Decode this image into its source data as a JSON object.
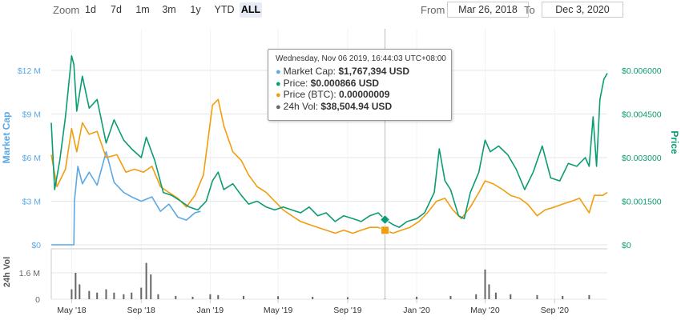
{
  "range_selector": {
    "zoom_label": "Zoom",
    "buttons": [
      {
        "label": "1d",
        "active": false
      },
      {
        "label": "7d",
        "active": false
      },
      {
        "label": "1m",
        "active": false
      },
      {
        "label": "3m",
        "active": false
      },
      {
        "label": "1y",
        "active": false
      },
      {
        "label": "YTD",
        "active": false
      },
      {
        "label": "ALL",
        "active": true
      }
    ],
    "from_label": "From",
    "from_value": "Mar 26, 2018",
    "to_label": "To",
    "to_value": "Dec 3, 2020"
  },
  "tooltip": {
    "header": "Wednesday, Nov 06 2019, 16:44:03 UTC+08:00",
    "rows": [
      {
        "label": "Market Cap:",
        "value": "$1,767,394 USD",
        "color": "#5aa9e6"
      },
      {
        "label": "Price:",
        "value": "$0.000866 USD",
        "color": "#0a9c73"
      },
      {
        "label": "Price (BTC):",
        "value": "0.00000009",
        "color": "#f29d0c"
      },
      {
        "label": "24h Vol:",
        "value": "$38,504.94 USD",
        "color": "#666666"
      }
    ]
  },
  "colors": {
    "market_cap": "#5aa9e6",
    "price": "#0a9c73",
    "price_btc": "#f29d0c",
    "volume": "#666666"
  },
  "chart_data": {
    "type": "line",
    "x_range": [
      "2018-03-26",
      "2020-12-03"
    ],
    "x_tick_labels": [
      "May '18",
      "Sep '18",
      "Jan '19",
      "May '19",
      "Sep '19",
      "Jan '20",
      "May '20",
      "Sep '20"
    ],
    "x_tick_dates": [
      "2018-05-01",
      "2018-09-01",
      "2019-01-01",
      "2019-05-01",
      "2019-09-01",
      "2020-01-01",
      "2020-05-01",
      "2020-09-01"
    ],
    "left_axis": {
      "label": "Market Cap",
      "ticks": [
        "$0",
        "$3 M",
        "$6 M",
        "$9 M",
        "$12 M"
      ],
      "values": [
        0,
        3000000,
        6000000,
        9000000,
        12000000
      ]
    },
    "right_axis": {
      "label": "Price",
      "ticks": [
        "$0",
        "$0.001500",
        "$0.003000",
        "$0.004500",
        "$0.006000"
      ],
      "values": [
        0,
        0.0015,
        0.003,
        0.0045,
        0.006
      ]
    },
    "volume_axis": {
      "label": "24h Vol",
      "ticks": [
        "0",
        "1.6 M"
      ],
      "values": [
        0,
        1600000
      ]
    },
    "crosshair_date": "2019-11-06",
    "series": [
      {
        "name": "Market Cap",
        "axis": "left",
        "points": [
          [
            "2018-03-26",
            0
          ],
          [
            "2018-05-05",
            0
          ],
          [
            "2018-05-06",
            3000000
          ],
          [
            "2018-05-12",
            5400000
          ],
          [
            "2018-05-20",
            4200000
          ],
          [
            "2018-06-01",
            5000000
          ],
          [
            "2018-06-15",
            4100000
          ],
          [
            "2018-07-01",
            6400000
          ],
          [
            "2018-07-15",
            4300000
          ],
          [
            "2018-08-01",
            3600000
          ],
          [
            "2018-08-15",
            3300000
          ],
          [
            "2018-09-01",
            3000000
          ],
          [
            "2018-09-20",
            3300000
          ],
          [
            "2018-10-05",
            2300000
          ],
          [
            "2018-10-20",
            2800000
          ],
          [
            "2018-11-05",
            1900000
          ],
          [
            "2018-11-20",
            1700000
          ],
          [
            "2018-12-05",
            2200000
          ],
          [
            "2018-12-15",
            2300000
          ]
        ]
      },
      {
        "name": "Price",
        "axis": "right",
        "points": [
          [
            "2018-03-26",
            0.0042
          ],
          [
            "2018-04-01",
            0.0019
          ],
          [
            "2018-04-10",
            0.0029
          ],
          [
            "2018-04-20",
            0.0044
          ],
          [
            "2018-05-01",
            0.0065
          ],
          [
            "2018-05-05",
            0.0062
          ],
          [
            "2018-05-10",
            0.0046
          ],
          [
            "2018-05-20",
            0.0058
          ],
          [
            "2018-06-01",
            0.0047
          ],
          [
            "2018-06-15",
            0.005
          ],
          [
            "2018-07-01",
            0.0035
          ],
          [
            "2018-07-15",
            0.0043
          ],
          [
            "2018-08-01",
            0.0036
          ],
          [
            "2018-08-15",
            0.0033
          ],
          [
            "2018-09-01",
            0.003
          ],
          [
            "2018-09-10",
            0.0037
          ],
          [
            "2018-09-25",
            0.0029
          ],
          [
            "2018-10-10",
            0.0018
          ],
          [
            "2018-10-25",
            0.0017
          ],
          [
            "2018-11-10",
            0.0015
          ],
          [
            "2018-11-25",
            0.0013
          ],
          [
            "2018-12-10",
            0.0012
          ],
          [
            "2018-12-25",
            0.0015
          ],
          [
            "2019-01-05",
            0.0022
          ],
          [
            "2019-01-15",
            0.0025
          ],
          [
            "2019-01-25",
            0.0019
          ],
          [
            "2019-02-10",
            0.0021
          ],
          [
            "2019-02-25",
            0.0017
          ],
          [
            "2019-03-10",
            0.0014
          ],
          [
            "2019-03-25",
            0.0015
          ],
          [
            "2019-04-10",
            0.0013
          ],
          [
            "2019-04-25",
            0.0012
          ],
          [
            "2019-05-10",
            0.0013
          ],
          [
            "2019-05-25",
            0.0012
          ],
          [
            "2019-06-10",
            0.0011
          ],
          [
            "2019-06-25",
            0.0013
          ],
          [
            "2019-07-10",
            0.001
          ],
          [
            "2019-07-25",
            0.0011
          ],
          [
            "2019-08-10",
            0.0008
          ],
          [
            "2019-08-25",
            0.001
          ],
          [
            "2019-09-10",
            0.0009
          ],
          [
            "2019-09-25",
            0.0008
          ],
          [
            "2019-10-10",
            0.001
          ],
          [
            "2019-10-25",
            0.0011
          ],
          [
            "2019-11-06",
            0.000866
          ],
          [
            "2019-11-20",
            0.0007
          ],
          [
            "2019-12-01",
            0.0006
          ],
          [
            "2019-12-15",
            0.0008
          ],
          [
            "2020-01-01",
            0.0009
          ],
          [
            "2020-01-15",
            0.0011
          ],
          [
            "2020-02-01",
            0.0018
          ],
          [
            "2020-02-10",
            0.0033
          ],
          [
            "2020-02-20",
            0.0022
          ],
          [
            "2020-03-01",
            0.0019
          ],
          [
            "2020-03-15",
            0.001
          ],
          [
            "2020-03-25",
            0.0009
          ],
          [
            "2020-04-05",
            0.0018
          ],
          [
            "2020-04-20",
            0.0025
          ],
          [
            "2020-05-01",
            0.0036
          ],
          [
            "2020-05-10",
            0.0032
          ],
          [
            "2020-05-25",
            0.0034
          ],
          [
            "2020-06-10",
            0.0031
          ],
          [
            "2020-06-25",
            0.0026
          ],
          [
            "2020-07-10",
            0.0019
          ],
          [
            "2020-07-25",
            0.0025
          ],
          [
            "2020-08-10",
            0.0034
          ],
          [
            "2020-08-25",
            0.0023
          ],
          [
            "2020-09-10",
            0.0022
          ],
          [
            "2020-09-25",
            0.0028
          ],
          [
            "2020-10-10",
            0.0027
          ],
          [
            "2020-10-25",
            0.003
          ],
          [
            "2020-11-01",
            0.0027
          ],
          [
            "2020-11-08",
            0.0044
          ],
          [
            "2020-11-14",
            0.0027
          ],
          [
            "2020-11-20",
            0.005
          ],
          [
            "2020-11-27",
            0.0057
          ],
          [
            "2020-12-03",
            0.0059
          ]
        ]
      },
      {
        "name": "Price (BTC)",
        "axis": "right",
        "points": [
          [
            "2018-03-26",
            0.0031
          ],
          [
            "2018-04-05",
            0.002
          ],
          [
            "2018-04-20",
            0.0026
          ],
          [
            "2018-05-01",
            0.004
          ],
          [
            "2018-05-10",
            0.0032
          ],
          [
            "2018-05-20",
            0.0042
          ],
          [
            "2018-06-01",
            0.0038
          ],
          [
            "2018-06-15",
            0.0039
          ],
          [
            "2018-07-01",
            0.003
          ],
          [
            "2018-07-20",
            0.0031
          ],
          [
            "2018-08-05",
            0.0025
          ],
          [
            "2018-08-20",
            0.0026
          ],
          [
            "2018-09-05",
            0.0025
          ],
          [
            "2018-09-20",
            0.0027
          ],
          [
            "2018-10-05",
            0.002
          ],
          [
            "2018-10-20",
            0.0018
          ],
          [
            "2018-11-05",
            0.0016
          ],
          [
            "2018-11-20",
            0.0013
          ],
          [
            "2018-12-05",
            0.0017
          ],
          [
            "2018-12-20",
            0.0024
          ],
          [
            "2019-01-05",
            0.0048
          ],
          [
            "2019-01-15",
            0.005
          ],
          [
            "2019-01-25",
            0.0041
          ],
          [
            "2019-02-10",
            0.0032
          ],
          [
            "2019-02-25",
            0.0029
          ],
          [
            "2019-03-10",
            0.0024
          ],
          [
            "2019-03-25",
            0.002
          ],
          [
            "2019-04-10",
            0.0018
          ],
          [
            "2019-04-25",
            0.0015
          ],
          [
            "2019-05-10",
            0.0012
          ],
          [
            "2019-05-25",
            0.001
          ],
          [
            "2019-06-10",
            0.0008
          ],
          [
            "2019-06-25",
            0.0007
          ],
          [
            "2019-07-10",
            0.0006
          ],
          [
            "2019-07-25",
            0.0005
          ],
          [
            "2019-08-10",
            0.0004
          ],
          [
            "2019-08-25",
            0.0005
          ],
          [
            "2019-09-10",
            0.0004
          ],
          [
            "2019-09-25",
            0.0005
          ],
          [
            "2019-10-10",
            0.0006
          ],
          [
            "2019-10-25",
            0.0006
          ],
          [
            "2019-11-06",
            0.0005
          ],
          [
            "2019-11-20",
            0.0004
          ],
          [
            "2019-12-05",
            0.0005
          ],
          [
            "2019-12-20",
            0.0006
          ],
          [
            "2020-01-05",
            0.0008
          ],
          [
            "2020-01-20",
            0.0011
          ],
          [
            "2020-02-05",
            0.0015
          ],
          [
            "2020-02-20",
            0.0016
          ],
          [
            "2020-03-05",
            0.0012
          ],
          [
            "2020-03-20",
            0.0009
          ],
          [
            "2020-04-05",
            0.0013
          ],
          [
            "2020-04-20",
            0.0018
          ],
          [
            "2020-05-01",
            0.0022
          ],
          [
            "2020-05-15",
            0.0021
          ],
          [
            "2020-06-01",
            0.0019
          ],
          [
            "2020-06-15",
            0.0017
          ],
          [
            "2020-07-01",
            0.0016
          ],
          [
            "2020-07-15",
            0.0014
          ],
          [
            "2020-08-01",
            0.001
          ],
          [
            "2020-08-15",
            0.0012
          ],
          [
            "2020-09-01",
            0.0013
          ],
          [
            "2020-09-15",
            0.0014
          ],
          [
            "2020-10-01",
            0.0015
          ],
          [
            "2020-10-15",
            0.0016
          ],
          [
            "2020-11-01",
            0.0011
          ],
          [
            "2020-11-10",
            0.0017
          ],
          [
            "2020-11-25",
            0.0017
          ],
          [
            "2020-12-03",
            0.0018
          ]
        ]
      },
      {
        "name": "24h Vol",
        "axis": "volume",
        "type": "bar",
        "points": [
          [
            "2018-05-01",
            600000
          ],
          [
            "2018-05-08",
            1600000
          ],
          [
            "2018-05-15",
            900000
          ],
          [
            "2018-06-01",
            500000
          ],
          [
            "2018-06-15",
            400000
          ],
          [
            "2018-07-01",
            600000
          ],
          [
            "2018-07-15",
            400000
          ],
          [
            "2018-08-01",
            300000
          ],
          [
            "2018-08-15",
            400000
          ],
          [
            "2018-09-01",
            700000
          ],
          [
            "2018-09-10",
            2200000
          ],
          [
            "2018-09-18",
            1500000
          ],
          [
            "2018-10-01",
            300000
          ],
          [
            "2018-11-01",
            200000
          ],
          [
            "2018-12-01",
            150000
          ],
          [
            "2019-01-01",
            300000
          ],
          [
            "2019-01-15",
            250000
          ],
          [
            "2019-03-01",
            200000
          ],
          [
            "2019-05-01",
            180000
          ],
          [
            "2019-07-01",
            150000
          ],
          [
            "2019-09-01",
            120000
          ],
          [
            "2019-11-06",
            38505
          ],
          [
            "2020-01-01",
            150000
          ],
          [
            "2020-03-01",
            200000
          ],
          [
            "2020-04-15",
            300000
          ],
          [
            "2020-05-01",
            1800000
          ],
          [
            "2020-05-08",
            900000
          ],
          [
            "2020-05-20",
            400000
          ],
          [
            "2020-06-15",
            300000
          ],
          [
            "2020-08-01",
            250000
          ],
          [
            "2020-09-15",
            200000
          ],
          [
            "2020-11-01",
            250000
          ]
        ]
      }
    ]
  }
}
